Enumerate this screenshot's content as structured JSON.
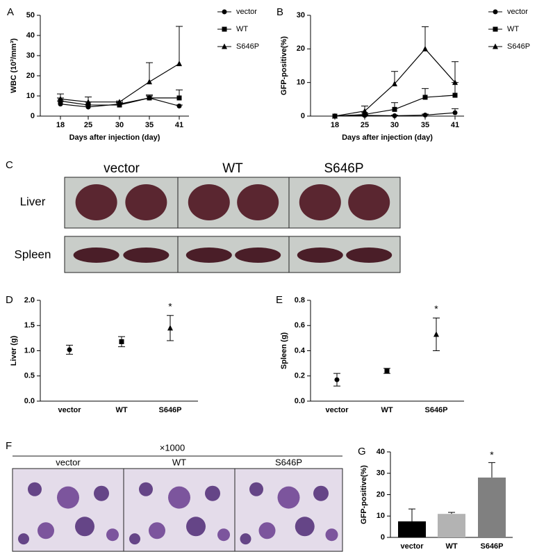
{
  "chart_data": [
    {
      "type": "line",
      "panel_label": "A",
      "x_label": "Days after injection (day)",
      "y_label": "WBC (10³/mm³)",
      "categories": [
        "18",
        "25",
        "30",
        "35",
        "41"
      ],
      "ylim": [
        0,
        50
      ],
      "yticks": [
        0,
        10,
        20,
        30,
        40,
        50
      ],
      "legend": "right",
      "series": [
        {
          "name": "vector",
          "color": "#000000",
          "marker": "circle",
          "values": [
            6,
            4.5,
            6,
            9,
            5
          ],
          "errors": [
            1.5,
            1,
            0.8,
            1,
            0.5
          ]
        },
        {
          "name": "WT",
          "color": "#000000",
          "marker": "square",
          "values": [
            7.5,
            5.5,
            5.5,
            9,
            9
          ],
          "errors": [
            1.5,
            1.5,
            1,
            1.5,
            4
          ]
        },
        {
          "name": "S646P",
          "color": "#000000",
          "marker": "triangle",
          "values": [
            8.5,
            7,
            7,
            17,
            26
          ],
          "errors": [
            2.5,
            2.5,
            0.5,
            9.5,
            18.5
          ]
        }
      ]
    },
    {
      "type": "line",
      "panel_label": "B",
      "x_label": "Days after injection (day)",
      "y_label": "GFP-positive(%)",
      "categories": [
        "18",
        "25",
        "30",
        "35",
        "41"
      ],
      "ylim": [
        0,
        30
      ],
      "yticks": [
        0,
        10,
        20,
        30
      ],
      "legend": "right",
      "series": [
        {
          "name": "vector",
          "color": "#000000",
          "marker": "circle",
          "values": [
            0,
            0.2,
            0.1,
            0.3,
            1
          ],
          "errors": [
            0,
            0.2,
            0.2,
            0.3,
            1.2
          ]
        },
        {
          "name": "WT",
          "color": "#000000",
          "marker": "square",
          "values": [
            0,
            0.5,
            2,
            5.6,
            6.2
          ],
          "errors": [
            0,
            0.5,
            2,
            2.6,
            3.8
          ]
        },
        {
          "name": "S646P",
          "color": "#000000",
          "marker": "triangle",
          "values": [
            0,
            1.5,
            9.6,
            20,
            10
          ],
          "errors": [
            0,
            1.5,
            3.7,
            6.6,
            6.2
          ]
        }
      ]
    },
    {
      "type": "scatter",
      "panel_label": "D",
      "y_label": "Liver (g)",
      "categories": [
        "vector",
        "WT",
        "S646P"
      ],
      "markers": [
        "circle",
        "square",
        "triangle"
      ],
      "color": "#000000",
      "values": [
        1.02,
        1.18,
        1.45
      ],
      "errors": [
        0.09,
        0.1,
        0.25
      ],
      "significance": [
        null,
        null,
        "*"
      ],
      "ylim": [
        0,
        2
      ],
      "yticks": [
        {
          "value": 0,
          "label": "0.0"
        },
        0.5,
        {
          "value": 1,
          "label": "1.0"
        },
        1.5,
        {
          "value": 2,
          "label": "2.0"
        }
      ]
    },
    {
      "type": "scatter",
      "panel_label": "E",
      "y_label": "Spleen (g)",
      "categories": [
        "vector",
        "WT",
        "S646P"
      ],
      "markers": [
        "circle",
        "square",
        "triangle"
      ],
      "color": "#000000",
      "values": [
        0.17,
        0.24,
        0.53
      ],
      "errors": [
        0.05,
        0.02,
        0.13
      ],
      "significance": [
        null,
        null,
        "*"
      ],
      "ylim": [
        0,
        0.8
      ],
      "yticks": [
        {
          "value": 0,
          "label": "0.0"
        },
        0.2,
        0.4,
        0.6,
        0.8
      ]
    },
    {
      "type": "bar",
      "panel_label": "G",
      "y_label": "GFP-positive(%)",
      "categories": [
        "vector",
        "WT",
        "S646P"
      ],
      "colors": [
        "#000000",
        "#b3b3b3",
        "#808080"
      ],
      "values": [
        7.5,
        11,
        28
      ],
      "errors": [
        5.8,
        0.7,
        7
      ],
      "significance": [
        null,
        null,
        "*"
      ],
      "ylim": [
        0,
        40
      ],
      "yticks": [
        0,
        10,
        20,
        30,
        40
      ]
    }
  ],
  "photo_panels": [
    {
      "panel_label": "C",
      "columns": [
        "vector",
        "WT",
        "S646P"
      ],
      "rows": [
        "Liver",
        "Spleen"
      ]
    },
    {
      "panel_label": "F",
      "magnification": "×1000",
      "columns": [
        "vector",
        "WT",
        "S646P"
      ]
    }
  ]
}
